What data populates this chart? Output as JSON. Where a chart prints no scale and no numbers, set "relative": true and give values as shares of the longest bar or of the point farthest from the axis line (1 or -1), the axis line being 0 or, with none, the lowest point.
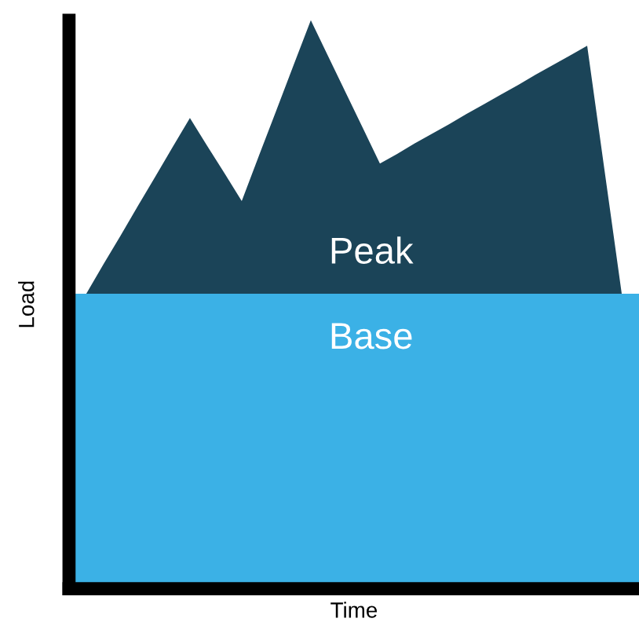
{
  "chart_data": {
    "type": "area",
    "relative": true,
    "xlabel": "Time",
    "ylabel": "Load",
    "tick_labels": false,
    "legend": false,
    "categories": [
      null,
      null,
      null,
      null,
      null,
      null,
      null,
      null,
      null,
      null,
      null,
      null,
      null,
      null,
      null,
      null,
      null,
      null,
      null,
      null,
      null,
      null,
      null,
      null,
      null,
      null,
      null,
      null,
      null,
      null,
      null,
      null,
      null,
      null
    ],
    "series": [
      {
        "name": "Peak",
        "color": "#1b4458",
        "values": [
          0.519,
          0.519,
          0.571,
          0.622,
          0.674,
          0.725,
          0.777,
          0.828,
          0.779,
          0.731,
          0.682,
          0.762,
          0.841,
          0.921,
          1.0,
          0.937,
          0.874,
          0.811,
          0.748,
          0.765,
          0.783,
          0.8,
          0.817,
          0.835,
          0.852,
          0.869,
          0.886,
          0.904,
          0.921,
          0.938,
          0.955,
          0.737,
          0.519,
          0.519
        ]
      },
      {
        "name": "Base",
        "color": "#3bb1e6",
        "values": [
          0.519,
          0.519,
          0.519,
          0.519,
          0.519,
          0.519,
          0.519,
          0.519,
          0.519,
          0.519,
          0.519,
          0.519,
          0.519,
          0.519,
          0.519,
          0.519,
          0.519,
          0.519,
          0.519,
          0.519,
          0.519,
          0.519,
          0.519,
          0.519,
          0.519,
          0.519,
          0.519,
          0.519,
          0.519,
          0.519,
          0.519,
          0.519,
          0.519,
          0.519
        ]
      }
    ]
  }
}
